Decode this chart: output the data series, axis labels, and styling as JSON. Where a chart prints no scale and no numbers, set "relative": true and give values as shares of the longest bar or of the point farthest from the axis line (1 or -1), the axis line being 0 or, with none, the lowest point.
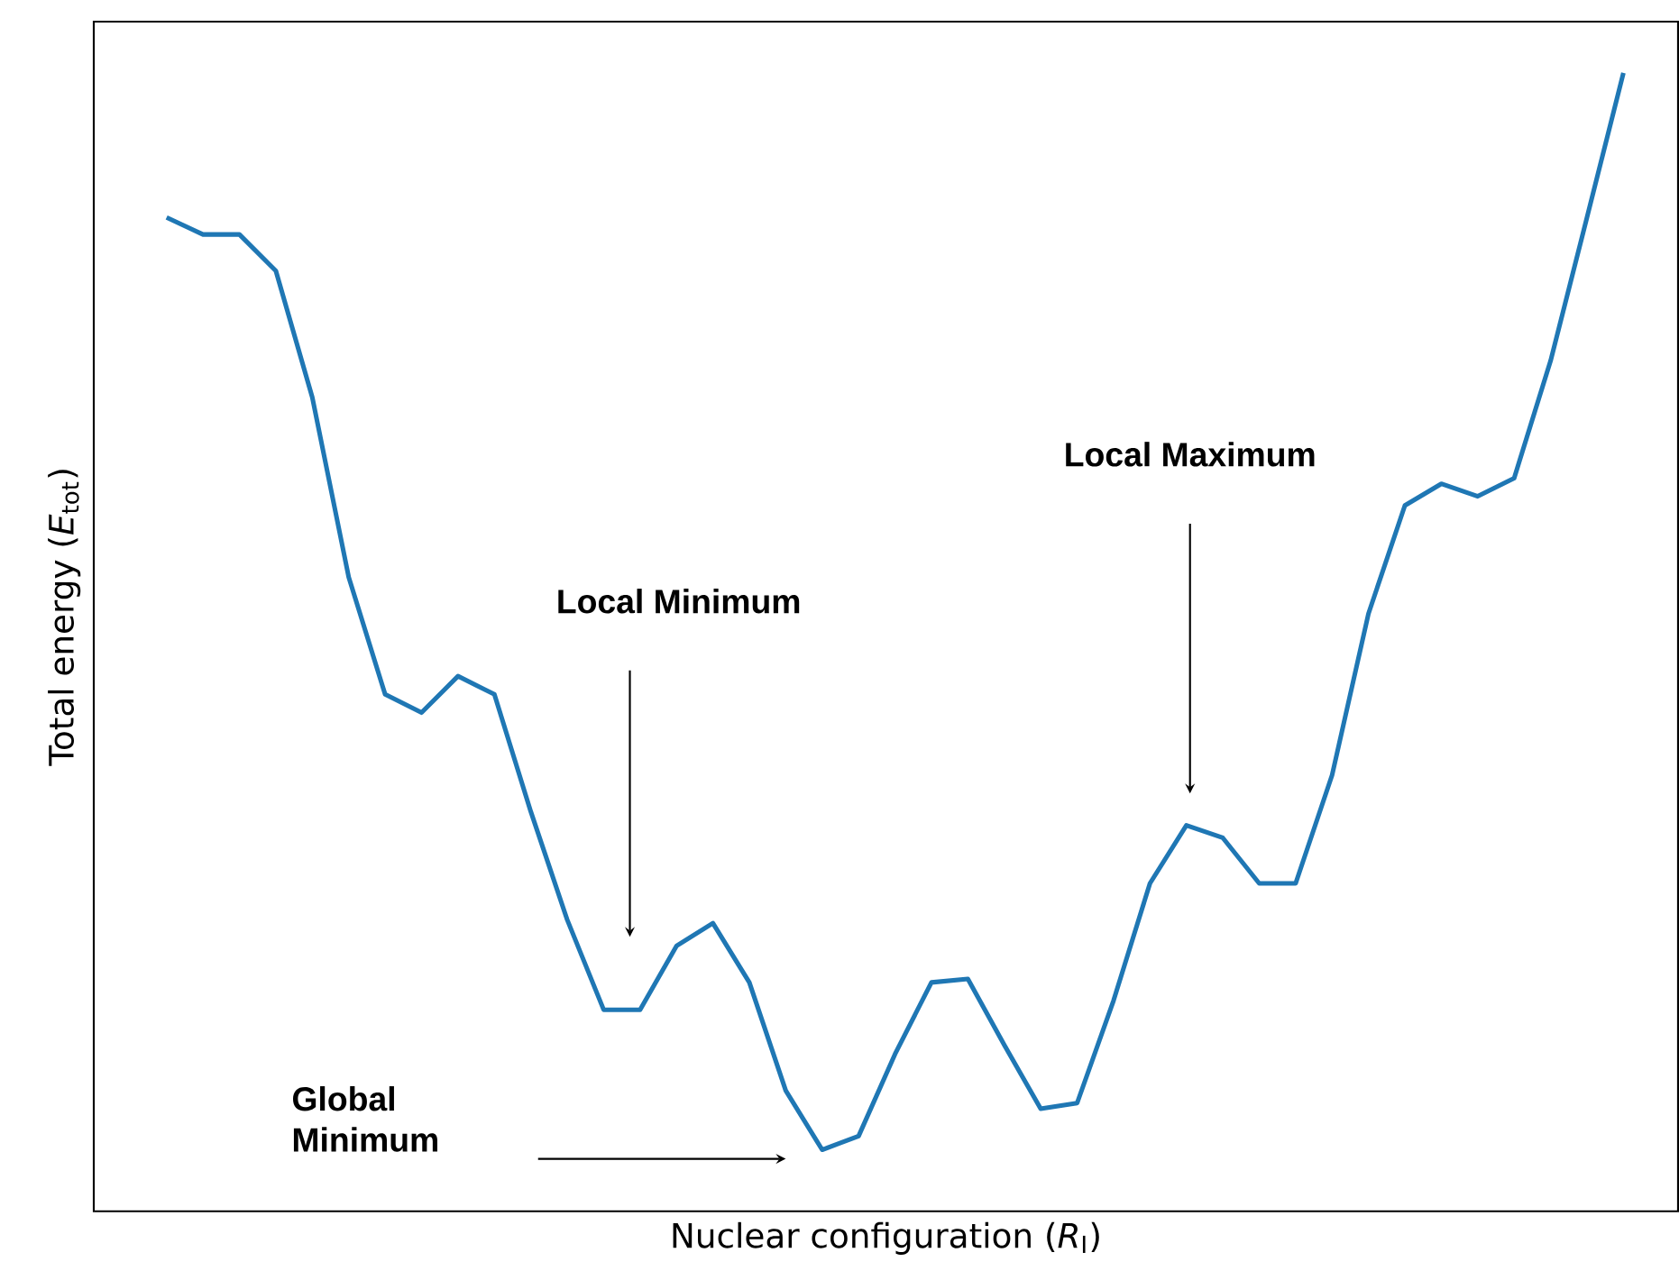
{
  "chart_data": {
    "type": "line",
    "relative": true,
    "xlabel": "Nuclear configuration (*R*$_{I}$)",
    "ylabel": "Total energy (*E*$_{tot}$)",
    "color": "#1f77b4",
    "categories": [
      null,
      null,
      null,
      null,
      null,
      null,
      null,
      null,
      null,
      null,
      null,
      null,
      null,
      null,
      null,
      null,
      null,
      null,
      null,
      null,
      null,
      null,
      null,
      null,
      null,
      null,
      null,
      null,
      null,
      null,
      null,
      null,
      null,
      null,
      null,
      null,
      null,
      null,
      null,
      null,
      null
    ],
    "values": [
      0.873,
      0.858,
      0.858,
      0.826,
      0.715,
      0.557,
      0.454,
      0.438,
      0.47,
      0.454,
      0.351,
      0.256,
      0.177,
      0.177,
      0.233,
      0.253,
      0.201,
      0.106,
      0.054,
      0.066,
      0.138,
      0.201,
      0.204,
      0.146,
      0.09,
      0.095,
      0.185,
      0.288,
      0.339,
      0.328,
      0.288,
      0.288,
      0.383,
      0.525,
      0.62,
      0.639,
      0.628,
      0.644,
      0.747,
      0.873,
      1
    ],
    "annotations": [
      "Local Minimum",
      "Local Maximum",
      "Global Minimum"
    ]
  }
}
